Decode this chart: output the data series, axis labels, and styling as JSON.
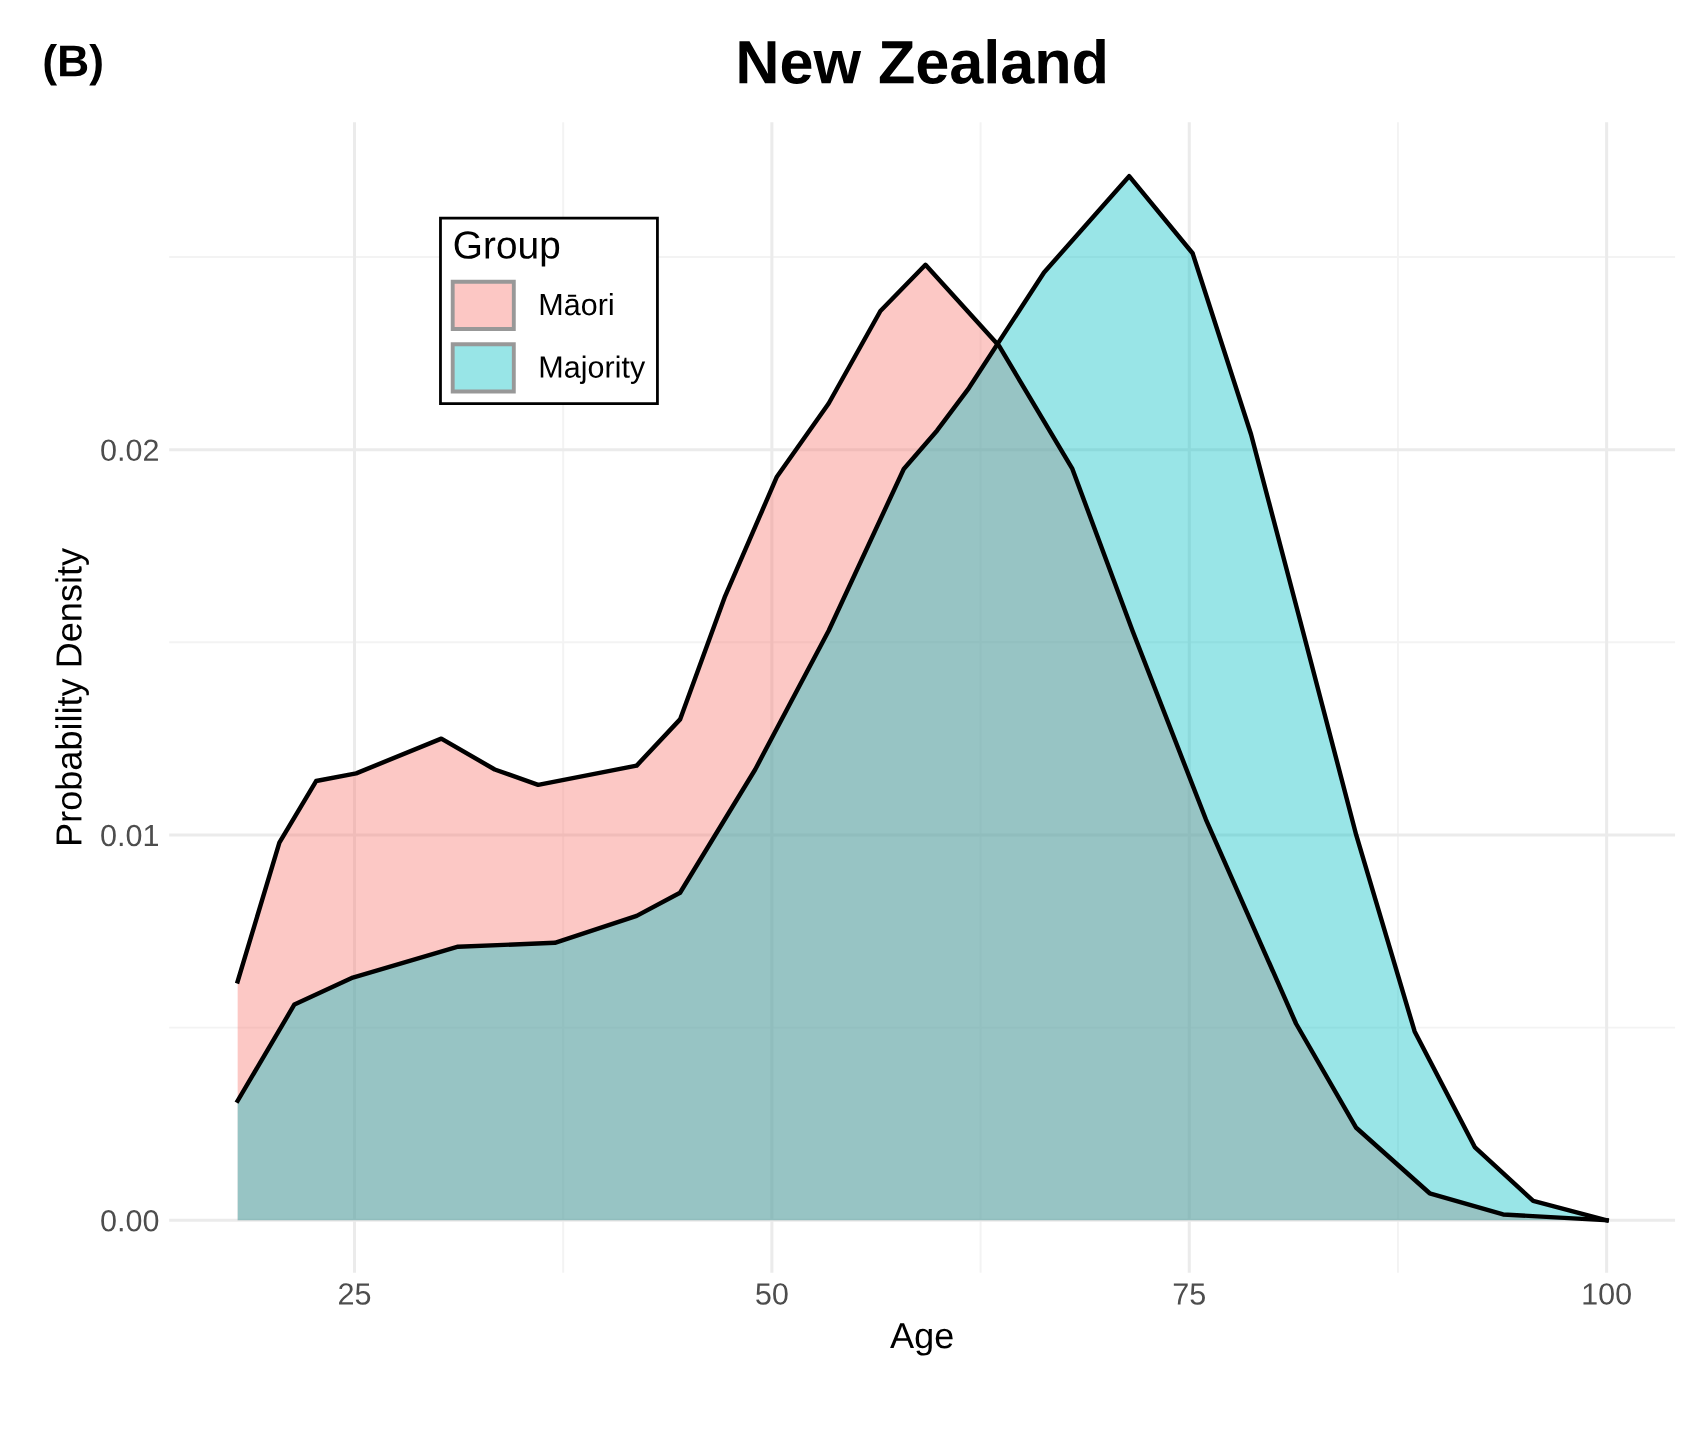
{
  "chart_data": {
    "type": "area",
    "title": "New Zealand",
    "xlabel": "Age",
    "ylabel": "Probability Density",
    "legend_title": "Group",
    "annotations": [
      "(B)"
    ],
    "series": [
      {
        "name": "Māori",
        "color": "#f8766d",
        "x": [
          18,
          20.5,
          22.7,
          25.1,
          30.2,
          33.4,
          36,
          41.9,
          44.5,
          47.2,
          50.3,
          53.4,
          56.5,
          59.2,
          63.6,
          68,
          71.6,
          76,
          81.4,
          85,
          89.4,
          93.8,
          100
        ],
        "values": [
          0.0062,
          0.0098,
          0.0114,
          0.0116,
          0.0125,
          0.0117,
          0.0113,
          0.0118,
          0.013,
          0.0162,
          0.0193,
          0.0212,
          0.0236,
          0.0248,
          0.0227,
          0.0195,
          0.0153,
          0.0104,
          0.0051,
          0.0024,
          0.0007,
          0.00015,
          0
        ]
      },
      {
        "name": "Majority",
        "color": "#00bfc4",
        "x": [
          18,
          21.4,
          24.9,
          31.2,
          37,
          41.9,
          44.5,
          49,
          53.4,
          57.9,
          59.9,
          61.8,
          66.3,
          71.4,
          75.2,
          78.7,
          81.8,
          85,
          88.5,
          92.1,
          95.6,
          100
        ],
        "values": [
          0.0031,
          0.0056,
          0.0063,
          0.0071,
          0.0072,
          0.0079,
          0.0085,
          0.0117,
          0.0153,
          0.0195,
          0.0205,
          0.0216,
          0.0246,
          0.0271,
          0.0251,
          0.0204,
          0.0153,
          0.01,
          0.0049,
          0.0019,
          0.0005,
          0
        ]
      }
    ],
    "xlim": [
      13.9,
      104.1
    ],
    "ylim": [
      -0.00136,
      0.0285
    ],
    "xticks": [
      25,
      50,
      75,
      100
    ],
    "yticks": [
      {
        "value": 0,
        "label": "0.00"
      },
      {
        "value": 0.01,
        "label": "0.01"
      },
      {
        "value": 0.02,
        "label": "0.02"
      }
    ],
    "grid": true,
    "legend": "top left"
  }
}
